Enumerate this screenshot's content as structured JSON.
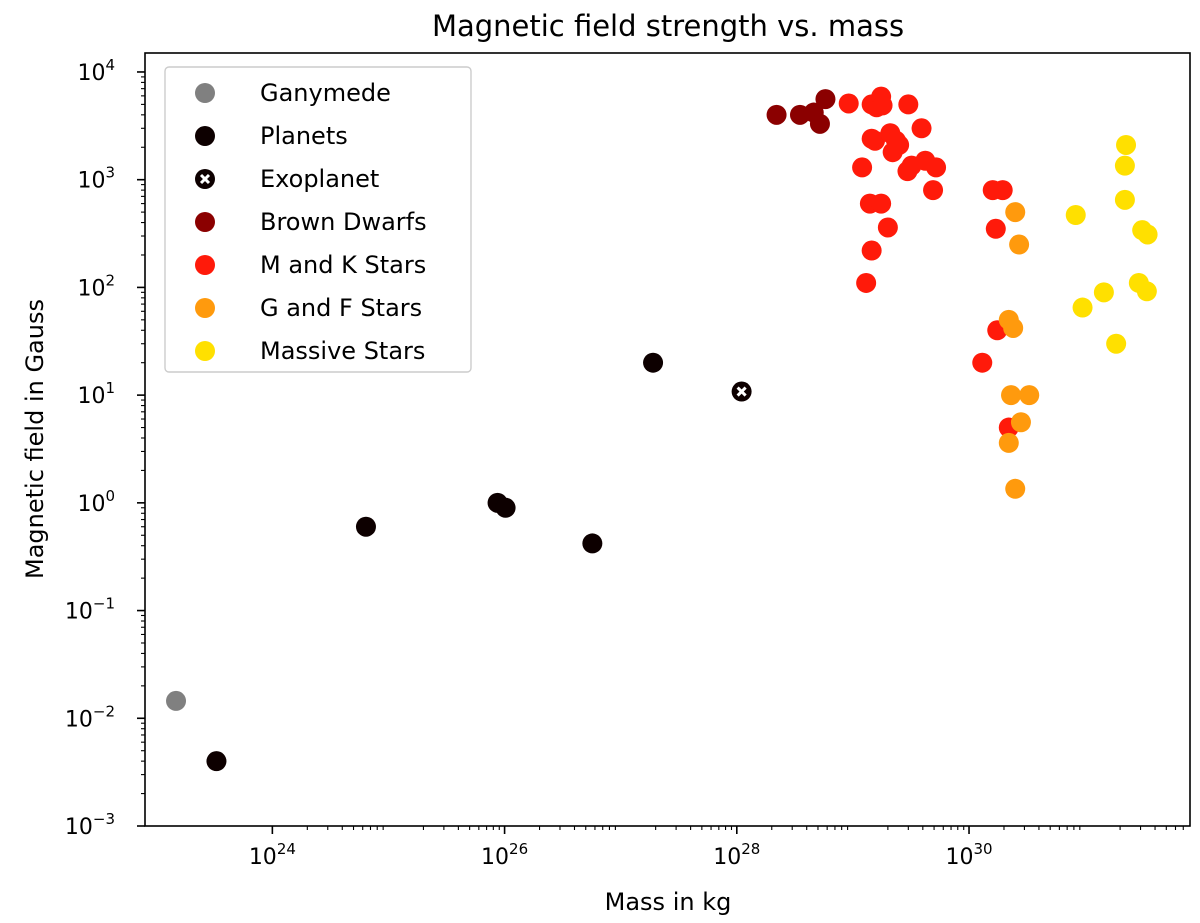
{
  "chart_data": {
    "type": "scatter",
    "title": "Magnetic field strength vs. mass",
    "xlabel": "Mass in kg",
    "ylabel": "Magnetic field in Gauss",
    "xscale": "log",
    "yscale": "log",
    "xlim": [
      8e+22,
      8e+31
    ],
    "ylim": [
      0.001,
      15000
    ],
    "x_ticks": [
      {
        "value": 1e+24,
        "base": "10",
        "exp": "24"
      },
      {
        "value": 1e+26,
        "base": "10",
        "exp": "26"
      },
      {
        "value": 1e+28,
        "base": "10",
        "exp": "28"
      },
      {
        "value": 1e+30,
        "base": "10",
        "exp": "30"
      }
    ],
    "y_ticks": [
      {
        "value": 10000,
        "base": "10",
        "exp": "4"
      },
      {
        "value": 1000,
        "base": "10",
        "exp": "3"
      },
      {
        "value": 100,
        "base": "10",
        "exp": "2"
      },
      {
        "value": 10,
        "base": "10",
        "exp": "1"
      },
      {
        "value": 1,
        "base": "10",
        "exp": "0"
      },
      {
        "value": 0.1,
        "base": "10",
        "exp": "−1"
      },
      {
        "value": 0.01,
        "base": "10",
        "exp": "−2"
      },
      {
        "value": 0.001,
        "base": "10",
        "exp": "−3"
      }
    ],
    "legend_position": "top-left",
    "series": [
      {
        "name": "Ganymede",
        "color": "#808080",
        "marker": "circle",
        "points": [
          [
            1.48e+23,
            0.0145
          ]
        ]
      },
      {
        "name": "Planets",
        "color": "#0d0000",
        "marker": "circle",
        "points": [
          [
            3.3e+23,
            0.004
          ],
          [
            6.4e+24,
            0.6
          ],
          [
            8.7e+25,
            1.0
          ],
          [
            1.02e+26,
            0.9
          ],
          [
            5.7e+26,
            0.42
          ],
          [
            1.9e+27,
            20
          ]
        ]
      },
      {
        "name": "Exoplanet",
        "color": "#0d0000",
        "marker": "circle-x",
        "points": [
          [
            1.1e+28,
            10.8
          ]
        ]
      },
      {
        "name": "Brown Dwarfs",
        "color": "#8b0000",
        "marker": "circle",
        "points": [
          [
            2.2e+28,
            4000
          ],
          [
            3.5e+28,
            4000
          ],
          [
            4.6e+28,
            4200
          ],
          [
            5.8e+28,
            5600
          ],
          [
            5.2e+28,
            3300
          ]
        ]
      },
      {
        "name": "M and K Stars",
        "color": "#ff1a0a",
        "marker": "circle",
        "points": [
          [
            9.2e+28,
            5100
          ],
          [
            1.45e+29,
            5000
          ],
          [
            1.6e+29,
            4700
          ],
          [
            1.75e+29,
            5900
          ],
          [
            1.8e+29,
            4900
          ],
          [
            3e+29,
            5000
          ],
          [
            1.55e+29,
            2300
          ],
          [
            1.45e+29,
            2400
          ],
          [
            2.1e+29,
            2700
          ],
          [
            2.35e+29,
            2300
          ],
          [
            2.5e+29,
            2100
          ],
          [
            2.2e+29,
            1800
          ],
          [
            2.95e+29,
            1200
          ],
          [
            3.2e+29,
            1350
          ],
          [
            3.9e+29,
            3000
          ],
          [
            4.2e+29,
            1500
          ],
          [
            5.2e+29,
            1300
          ],
          [
            1.2e+29,
            1300
          ],
          [
            1.4e+29,
            600
          ],
          [
            1.75e+29,
            600
          ],
          [
            2e+29,
            360
          ],
          [
            1.45e+29,
            220
          ],
          [
            1.3e+29,
            110
          ],
          [
            4.9e+29,
            800
          ],
          [
            1.6e+30,
            800
          ],
          [
            1.95e+30,
            800
          ],
          [
            1.7e+30,
            350
          ],
          [
            1.75e+30,
            40
          ],
          [
            1.3e+30,
            20
          ],
          [
            2.2e+30,
            5
          ]
        ]
      },
      {
        "name": "G and F Stars",
        "color": "#ff9a0d",
        "marker": "circle",
        "points": [
          [
            2.5e+30,
            500
          ],
          [
            2.7e+30,
            250
          ],
          [
            2.2e+30,
            50
          ],
          [
            2.4e+30,
            42
          ],
          [
            2.3e+30,
            10
          ],
          [
            3.3e+30,
            10
          ],
          [
            2.8e+30,
            5.6
          ],
          [
            2.2e+30,
            3.6
          ],
          [
            2.5e+30,
            1.35
          ]
        ]
      },
      {
        "name": "Massive Stars",
        "color": "#ffe000",
        "marker": "circle",
        "points": [
          [
            8.3e+30,
            470
          ],
          [
            2.25e+31,
            2100
          ],
          [
            2.2e+31,
            1350
          ],
          [
            2.2e+31,
            650
          ],
          [
            3.1e+31,
            340
          ],
          [
            3.45e+31,
            310
          ],
          [
            2.9e+31,
            110
          ],
          [
            3.4e+31,
            92
          ],
          [
            1.45e+31,
            90
          ],
          [
            9.5e+30,
            65
          ],
          [
            1.85e+31,
            30
          ]
        ]
      }
    ]
  }
}
